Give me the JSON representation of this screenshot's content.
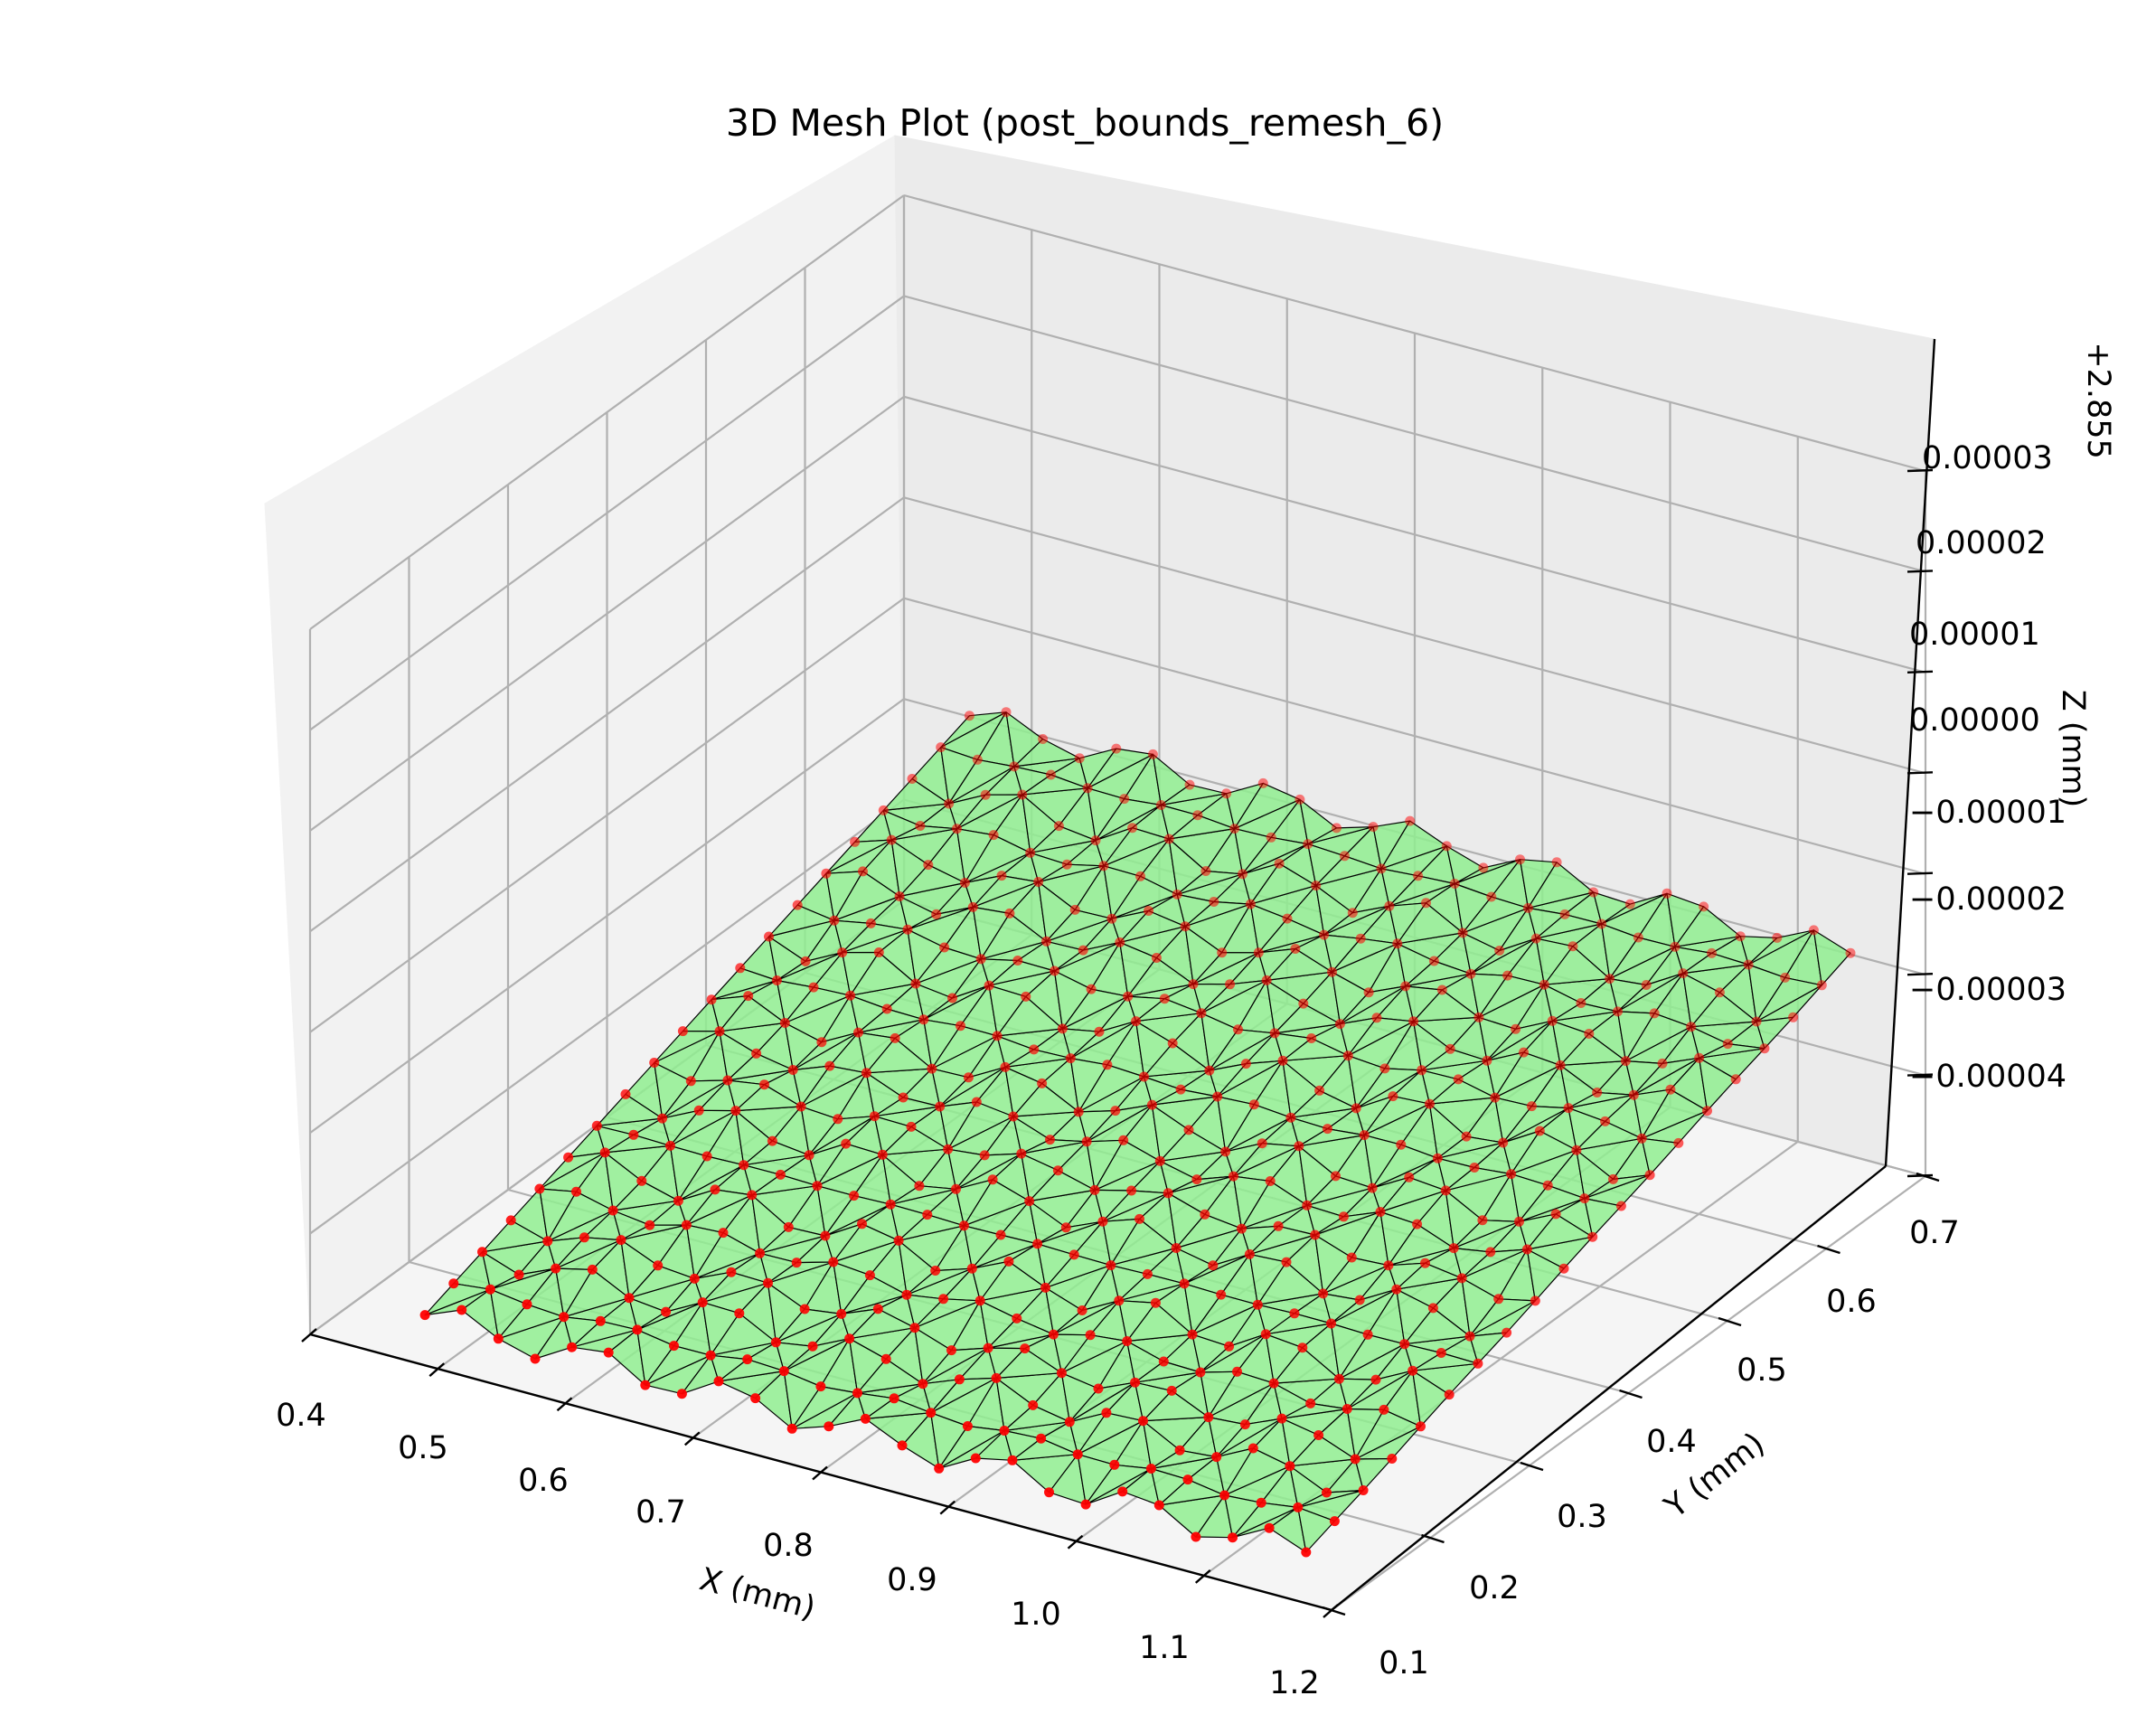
{
  "chart_data": {
    "type": "scatter",
    "title": "3D Mesh Plot (post_bounds_remesh_6)",
    "xlabel": "X (mm)",
    "ylabel": "Y (mm)",
    "zlabel": "Z (mm)",
    "z_offset_label": "+2.855",
    "xlim": [
      0.4,
      1.2
    ],
    "ylim": [
      0.1,
      0.7
    ],
    "zlim": [
      -4e-05,
      3e-05
    ],
    "x_ticks": [
      "0.4",
      "0.5",
      "0.6",
      "0.7",
      "0.8",
      "0.9",
      "1.0",
      "1.1",
      "1.2"
    ],
    "y_ticks": [
      "0.1",
      "0.2",
      "0.3",
      "0.4",
      "0.5",
      "0.6",
      "0.7"
    ],
    "z_ticks": [
      "−0.00004",
      "−0.00003",
      "−0.00002",
      "−0.00001",
      "0.00000",
      "0.00001",
      "0.00002",
      "0.00003"
    ],
    "grid": true,
    "surface_color": "#90ee90",
    "edge_color": "#000000",
    "point_color": "#ff0000",
    "mesh": {
      "x_range": [
        0.49,
        1.18
      ],
      "y_range": [
        0.1,
        0.65
      ],
      "node_spacing_mm": 0.029,
      "z_at_low_y": -3.5e-05,
      "z_at_high_y": -1.5e-05,
      "triangulation": "structured-with-diagonals"
    }
  }
}
